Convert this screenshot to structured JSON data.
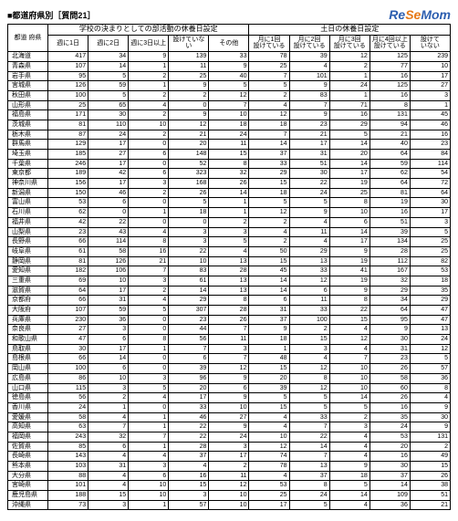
{
  "title": "■都道府県別［質問21］",
  "logo": {
    "re": "Re",
    "se": "Se",
    "mom": "Mom"
  },
  "headers": {
    "pref": "都道\n府県",
    "group1": "学校の決まりとしての部活動の休養日設定",
    "group2": "土日の休養日設定",
    "g1": [
      "週に1日",
      "週に2日",
      "週に3日以上",
      "設けていない",
      "その他"
    ],
    "g2": [
      "月に1回\n設けている",
      "月に2回\n設けている",
      "月に3回\n設けている",
      "月に4回以上\n設けている",
      "設けて\nいない"
    ]
  },
  "rows": [
    {
      "p": "北海道",
      "v": [
        417,
        34,
        9,
        139,
        33,
        78,
        39,
        12,
        125,
        239
      ]
    },
    {
      "p": "青森県",
      "v": [
        107,
        14,
        1,
        11,
        9,
        25,
        4,
        2,
        77,
        10
      ]
    },
    {
      "p": "岩手県",
      "v": [
        95,
        5,
        2,
        25,
        40,
        7,
        101,
        1,
        16,
        17
      ]
    },
    {
      "p": "宮城県",
      "v": [
        126,
        59,
        1,
        9,
        5,
        5,
        9,
        24,
        125,
        27
      ]
    },
    {
      "p": "秋田県",
      "v": [
        100,
        5,
        2,
        2,
        12,
        2,
        83,
        1,
        16,
        3
      ]
    },
    {
      "p": "山形県",
      "v": [
        25,
        65,
        4,
        0,
        7,
        4,
        7,
        71,
        8,
        1
      ]
    },
    {
      "p": "福島県",
      "v": [
        171,
        30,
        2,
        9,
        10,
        12,
        9,
        16,
        131,
        45
      ]
    },
    {
      "p": "茨城県",
      "v": [
        81,
        110,
        10,
        12,
        18,
        18,
        23,
        29,
        94,
        46
      ]
    },
    {
      "p": "栃木県",
      "v": [
        87,
        24,
        2,
        21,
        24,
        7,
        21,
        5,
        21,
        16
      ]
    },
    {
      "p": "群馬県",
      "v": [
        129,
        17,
        0,
        20,
        11,
        14,
        17,
        14,
        40,
        23
      ]
    },
    {
      "p": "埼玉県",
      "v": [
        185,
        27,
        6,
        148,
        15,
        37,
        31,
        20,
        64,
        84
      ]
    },
    {
      "p": "千葉県",
      "v": [
        246,
        17,
        0,
        52,
        8,
        33,
        51,
        14,
        59,
        114
      ]
    },
    {
      "p": "東京都",
      "v": [
        189,
        42,
        6,
        323,
        32,
        29,
        30,
        17,
        62,
        54
      ]
    },
    {
      "p": "神奈川県",
      "v": [
        156,
        17,
        3,
        168,
        26,
        15,
        22,
        19,
        64,
        72
      ]
    },
    {
      "p": "新潟県",
      "v": [
        150,
        46,
        2,
        26,
        14,
        18,
        24,
        25,
        81,
        64
      ]
    },
    {
      "p": "富山県",
      "v": [
        53,
        6,
        0,
        5,
        1,
        5,
        5,
        8,
        19,
        30
      ]
    },
    {
      "p": "石川県",
      "v": [
        62,
        0,
        1,
        18,
        1,
        12,
        9,
        10,
        16,
        17
      ]
    },
    {
      "p": "福井県",
      "v": [
        42,
        22,
        0,
        0,
        2,
        2,
        4,
        6,
        51,
        3
      ]
    },
    {
      "p": "山梨県",
      "v": [
        23,
        43,
        4,
        3,
        3,
        4,
        11,
        14,
        39,
        5
      ]
    },
    {
      "p": "長野県",
      "v": [
        66,
        114,
        8,
        3,
        5,
        2,
        4,
        17,
        134,
        25
      ]
    },
    {
      "p": "岐阜県",
      "v": [
        61,
        58,
        16,
        22,
        4,
        50,
        29,
        9,
        28,
        25
      ]
    },
    {
      "p": "静岡県",
      "v": [
        81,
        126,
        21,
        10,
        13,
        15,
        13,
        19,
        112,
        82
      ]
    },
    {
      "p": "愛知県",
      "v": [
        182,
        106,
        7,
        83,
        28,
        45,
        33,
        41,
        167,
        53
      ]
    },
    {
      "p": "三重県",
      "v": [
        69,
        10,
        3,
        61,
        13,
        14,
        12,
        19,
        32,
        18
      ]
    },
    {
      "p": "滋賀県",
      "v": [
        64,
        17,
        2,
        14,
        13,
        14,
        6,
        9,
        29,
        35
      ]
    },
    {
      "p": "京都府",
      "v": [
        66,
        31,
        4,
        29,
        8,
        6,
        11,
        8,
        34,
        29
      ]
    },
    {
      "p": "大阪府",
      "v": [
        107,
        59,
        5,
        307,
        28,
        31,
        33,
        22,
        64,
        47
      ]
    },
    {
      "p": "兵庫県",
      "v": [
        230,
        36,
        0,
        23,
        26,
        37,
        100,
        15,
        95,
        47
      ]
    },
    {
      "p": "奈良県",
      "v": [
        27,
        3,
        0,
        44,
        7,
        9,
        2,
        4,
        9,
        13
      ]
    },
    {
      "p": "和歌山県",
      "v": [
        47,
        6,
        8,
        56,
        11,
        18,
        15,
        12,
        30,
        24
      ]
    },
    {
      "p": "鳥取県",
      "v": [
        30,
        17,
        1,
        7,
        3,
        1,
        3,
        4,
        31,
        12
      ]
    },
    {
      "p": "島根県",
      "v": [
        66,
        14,
        0,
        6,
        7,
        48,
        4,
        7,
        23,
        5
      ]
    },
    {
      "p": "岡山県",
      "v": [
        100,
        6,
        0,
        39,
        12,
        15,
        12,
        10,
        26,
        57
      ]
    },
    {
      "p": "広島県",
      "v": [
        86,
        10,
        3,
        96,
        9,
        20,
        8,
        10,
        58,
        36
      ]
    },
    {
      "p": "山口県",
      "v": [
        115,
        3,
        5,
        20,
        6,
        39,
        12,
        10,
        60,
        8
      ]
    },
    {
      "p": "徳島県",
      "v": [
        56,
        2,
        4,
        17,
        9,
        5,
        5,
        14,
        26,
        4
      ]
    },
    {
      "p": "香川県",
      "v": [
        24,
        1,
        0,
        33,
        10,
        15,
        5,
        5,
        16,
        9
      ]
    },
    {
      "p": "愛媛県",
      "v": [
        58,
        4,
        1,
        46,
        27,
        4,
        33,
        2,
        35,
        30
      ]
    },
    {
      "p": "高知県",
      "v": [
        63,
        7,
        1,
        22,
        9,
        4,
        7,
        3,
        24,
        9
      ]
    },
    {
      "p": "福岡県",
      "v": [
        243,
        32,
        7,
        22,
        24,
        10,
        22,
        4,
        53,
        131
      ]
    },
    {
      "p": "佐賀県",
      "v": [
        85,
        6,
        1,
        28,
        3,
        12,
        14,
        4,
        20,
        2
      ]
    },
    {
      "p": "長崎県",
      "v": [
        143,
        4,
        4,
        37,
        17,
        74,
        7,
        4,
        16,
        49
      ]
    },
    {
      "p": "熊本県",
      "v": [
        103,
        31,
        3,
        4,
        2,
        78,
        13,
        9,
        30,
        15
      ]
    },
    {
      "p": "大分県",
      "v": [
        88,
        4,
        6,
        16,
        11,
        4,
        37,
        18,
        37,
        26
      ]
    },
    {
      "p": "宮崎県",
      "v": [
        101,
        4,
        10,
        15,
        12,
        53,
        8,
        5,
        14,
        38
      ]
    },
    {
      "p": "鹿児島県",
      "v": [
        188,
        15,
        10,
        3,
        10,
        25,
        24,
        14,
        109,
        51
      ]
    },
    {
      "p": "沖縄県",
      "v": [
        73,
        3,
        1,
        57,
        10,
        17,
        5,
        4,
        36,
        21
      ]
    }
  ]
}
